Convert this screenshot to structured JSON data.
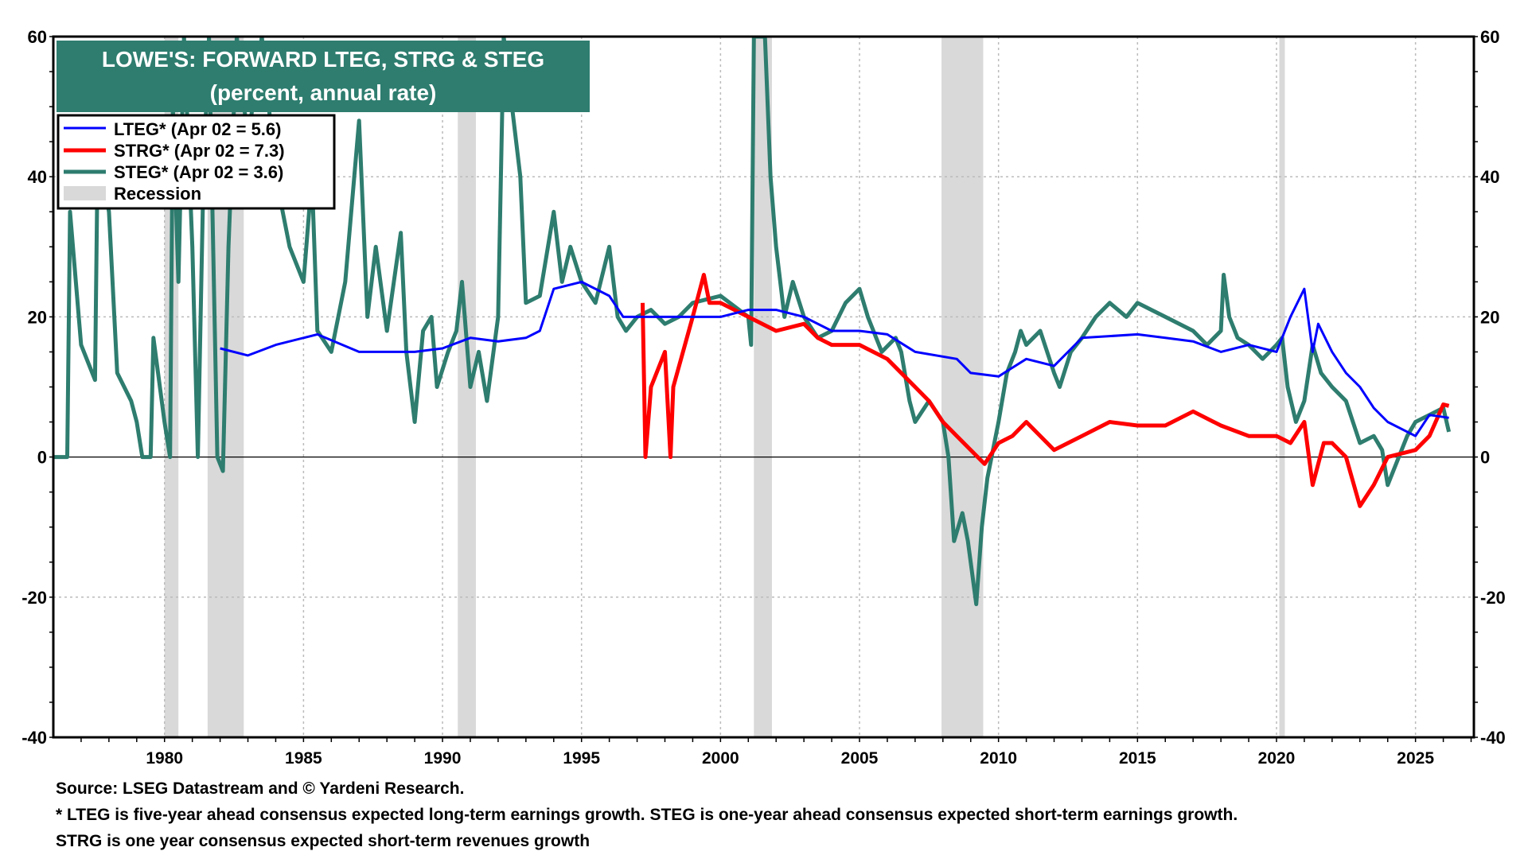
{
  "chart_data": {
    "type": "line",
    "title": "LOWE'S: FORWARD LTEG, STRG & STEG",
    "subtitle": "(percent, annual rate)",
    "xlim": [
      1976.0,
      2027.1
    ],
    "ylim": [
      -40,
      60
    ],
    "grid": true,
    "legend_placement": "top-left",
    "x_ticks": [
      1980,
      1985,
      1990,
      1995,
      2000,
      2005,
      2010,
      2015,
      2020,
      2025
    ],
    "y_ticks": [
      -40,
      -20,
      0,
      20,
      40,
      60
    ],
    "colors": {
      "title_bg": "#2e7d6f",
      "lteg": "#0000ff",
      "strg": "#ff0000",
      "steg": "#2e7d6f",
      "recession": "#d9d9d9"
    },
    "recessions": [
      [
        1980.0,
        1980.5
      ],
      [
        1981.55,
        1982.85
      ],
      [
        1990.55,
        1991.2
      ],
      [
        2001.2,
        2001.85
      ],
      [
        2007.95,
        2009.45
      ],
      [
        2020.1,
        2020.3
      ]
    ],
    "legend": {
      "lteg": "LTEG* (Apr 02 = 5.6)",
      "strg": "STRG* (Apr 02 = 7.3)",
      "steg": "STEG* (Apr 02 = 3.6)",
      "recession": "Recession"
    },
    "series": [
      {
        "name": "LTEG*",
        "key": "lteg",
        "points": [
          [
            1982,
            15.5
          ],
          [
            1983,
            14.5
          ],
          [
            1984,
            16
          ],
          [
            1985.5,
            17.5
          ],
          [
            1987,
            15
          ],
          [
            1989,
            15
          ],
          [
            1990,
            15.5
          ],
          [
            1991,
            17
          ],
          [
            1992,
            16.5
          ],
          [
            1993,
            17
          ],
          [
            1993.5,
            18
          ],
          [
            1994,
            24
          ],
          [
            1995,
            25
          ],
          [
            1996,
            23
          ],
          [
            1996.5,
            20
          ],
          [
            1999,
            20
          ],
          [
            2000,
            20
          ],
          [
            2001,
            21
          ],
          [
            2002,
            21
          ],
          [
            2003,
            20
          ],
          [
            2004,
            18
          ],
          [
            2005,
            18
          ],
          [
            2006,
            17.5
          ],
          [
            2007,
            15
          ],
          [
            2008.5,
            14
          ],
          [
            2009,
            12
          ],
          [
            2010,
            11.5
          ],
          [
            2011,
            14
          ],
          [
            2012,
            13
          ],
          [
            2013,
            17
          ],
          [
            2015,
            17.5
          ],
          [
            2016,
            17
          ],
          [
            2017,
            16.5
          ],
          [
            2018,
            15
          ],
          [
            2019,
            16
          ],
          [
            2020,
            15
          ],
          [
            2020.5,
            20
          ],
          [
            2021,
            24
          ],
          [
            2021.3,
            15
          ],
          [
            2021.5,
            19
          ],
          [
            2022,
            15
          ],
          [
            2022.5,
            12
          ],
          [
            2023,
            10
          ],
          [
            2023.5,
            7
          ],
          [
            2024,
            5
          ],
          [
            2025,
            3
          ],
          [
            2025.5,
            6
          ],
          [
            2026.2,
            5.6
          ]
        ]
      },
      {
        "name": "STRG*",
        "key": "strg",
        "points": [
          [
            1997.2,
            22
          ],
          [
            1997.3,
            0
          ],
          [
            1997.5,
            10
          ],
          [
            1998,
            15
          ],
          [
            1998.2,
            0
          ],
          [
            1998.3,
            10
          ],
          [
            1999,
            20
          ],
          [
            1999.4,
            26
          ],
          [
            1999.6,
            22
          ],
          [
            2000,
            22
          ],
          [
            2001,
            20
          ],
          [
            2002,
            18
          ],
          [
            2003,
            19
          ],
          [
            2003.5,
            17
          ],
          [
            2004,
            16
          ],
          [
            2005,
            16
          ],
          [
            2006,
            14
          ],
          [
            2007,
            10
          ],
          [
            2007.5,
            8
          ],
          [
            2008,
            5
          ],
          [
            2008.5,
            3
          ],
          [
            2009,
            1
          ],
          [
            2009.5,
            -1
          ],
          [
            2010,
            2
          ],
          [
            2010.5,
            3
          ],
          [
            2011,
            5
          ],
          [
            2012,
            1
          ],
          [
            2012.5,
            2
          ],
          [
            2013,
            3
          ],
          [
            2014,
            5
          ],
          [
            2015,
            4.5
          ],
          [
            2016,
            4.5
          ],
          [
            2017,
            6.5
          ],
          [
            2018,
            4.5
          ],
          [
            2019,
            3
          ],
          [
            2020,
            3
          ],
          [
            2020.5,
            2
          ],
          [
            2021,
            5
          ],
          [
            2021.3,
            -4
          ],
          [
            2021.7,
            2
          ],
          [
            2022,
            2
          ],
          [
            2022.5,
            0
          ],
          [
            2023,
            -7
          ],
          [
            2023.5,
            -4
          ],
          [
            2024,
            0
          ],
          [
            2025,
            1
          ],
          [
            2025.5,
            3
          ],
          [
            2026,
            7.5
          ],
          [
            2026.2,
            7.3
          ]
        ]
      },
      {
        "name": "STEG*",
        "key": "steg",
        "points": [
          [
            1976,
            0
          ],
          [
            1976.5,
            0
          ],
          [
            1976.6,
            35
          ],
          [
            1977,
            16
          ],
          [
            1977.5,
            11
          ],
          [
            1977.6,
            45
          ],
          [
            1978,
            35
          ],
          [
            1978.3,
            12
          ],
          [
            1978.8,
            8
          ],
          [
            1979,
            5
          ],
          [
            1979.2,
            0
          ],
          [
            1979.5,
            0
          ],
          [
            1979.6,
            17
          ],
          [
            1980,
            5
          ],
          [
            1980.2,
            0
          ],
          [
            1980.3,
            50
          ],
          [
            1980.5,
            25
          ],
          [
            1980.7,
            60
          ],
          [
            1981,
            30
          ],
          [
            1981.2,
            0
          ],
          [
            1981.4,
            40
          ],
          [
            1981.6,
            60
          ],
          [
            1981.9,
            0
          ],
          [
            1982.1,
            -2
          ],
          [
            1982.3,
            30
          ],
          [
            1982.6,
            60
          ],
          [
            1983,
            45
          ],
          [
            1983.5,
            60
          ],
          [
            1984,
            40
          ],
          [
            1984.5,
            30
          ],
          [
            1985,
            25
          ],
          [
            1985.3,
            40
          ],
          [
            1985.5,
            18
          ],
          [
            1986,
            15
          ],
          [
            1986.5,
            25
          ],
          [
            1987,
            48
          ],
          [
            1987.3,
            20
          ],
          [
            1987.6,
            30
          ],
          [
            1988,
            18
          ],
          [
            1988.5,
            32
          ],
          [
            1988.7,
            15
          ],
          [
            1989,
            5
          ],
          [
            1989.3,
            18
          ],
          [
            1989.6,
            20
          ],
          [
            1989.8,
            10
          ],
          [
            1990.2,
            15
          ],
          [
            1990.5,
            18
          ],
          [
            1990.7,
            25
          ],
          [
            1991,
            10
          ],
          [
            1991.3,
            15
          ],
          [
            1991.6,
            8
          ],
          [
            1992,
            20
          ],
          [
            1992.2,
            60
          ],
          [
            1992.8,
            40
          ],
          [
            1993,
            22
          ],
          [
            1993.5,
            23
          ],
          [
            1994,
            35
          ],
          [
            1994.3,
            25
          ],
          [
            1994.6,
            30
          ],
          [
            1995,
            25
          ],
          [
            1995.5,
            22
          ],
          [
            1996,
            30
          ],
          [
            1996.3,
            20
          ],
          [
            1996.6,
            18
          ],
          [
            1997,
            20
          ],
          [
            1997.5,
            21
          ],
          [
            1998,
            19
          ],
          [
            1998.5,
            20
          ],
          [
            1999,
            22
          ],
          [
            2000,
            23
          ],
          [
            2001,
            20
          ],
          [
            2001.1,
            16
          ],
          [
            2001.2,
            60
          ],
          [
            2001.6,
            60
          ],
          [
            2001.8,
            40
          ],
          [
            2002,
            30
          ],
          [
            2002.3,
            20
          ],
          [
            2002.6,
            25
          ],
          [
            2003,
            20
          ],
          [
            2003.5,
            17
          ],
          [
            2004,
            18
          ],
          [
            2004.5,
            22
          ],
          [
            2005,
            24
          ],
          [
            2005.3,
            20
          ],
          [
            2005.8,
            15
          ],
          [
            2006.3,
            17
          ],
          [
            2006.5,
            15
          ],
          [
            2006.8,
            8
          ],
          [
            2007,
            5
          ],
          [
            2007.5,
            8
          ],
          [
            2008,
            5
          ],
          [
            2008.2,
            0
          ],
          [
            2008.4,
            -12
          ],
          [
            2008.7,
            -8
          ],
          [
            2008.9,
            -12
          ],
          [
            2009.2,
            -21
          ],
          [
            2009.4,
            -10
          ],
          [
            2009.6,
            -3
          ],
          [
            2010,
            5
          ],
          [
            2010.3,
            12
          ],
          [
            2010.6,
            15
          ],
          [
            2010.8,
            18
          ],
          [
            2011,
            16
          ],
          [
            2011.5,
            18
          ],
          [
            2012,
            12
          ],
          [
            2012.2,
            10
          ],
          [
            2012.6,
            15
          ],
          [
            2013,
            17
          ],
          [
            2013.5,
            20
          ],
          [
            2014,
            22
          ],
          [
            2014.6,
            20
          ],
          [
            2015,
            22
          ],
          [
            2015.5,
            21
          ],
          [
            2016,
            20
          ],
          [
            2017,
            18
          ],
          [
            2017.5,
            16
          ],
          [
            2018,
            18
          ],
          [
            2018.1,
            26
          ],
          [
            2018.3,
            20
          ],
          [
            2018.6,
            17
          ],
          [
            2019,
            16
          ],
          [
            2019.5,
            14
          ],
          [
            2020,
            16
          ],
          [
            2020.2,
            17
          ],
          [
            2020.4,
            10
          ],
          [
            2020.7,
            5
          ],
          [
            2021,
            8
          ],
          [
            2021.3,
            16
          ],
          [
            2021.6,
            12
          ],
          [
            2022,
            10
          ],
          [
            2022.5,
            8
          ],
          [
            2023,
            2
          ],
          [
            2023.5,
            3
          ],
          [
            2023.8,
            1
          ],
          [
            2024,
            -4
          ],
          [
            2024.4,
            0
          ],
          [
            2024.7,
            3
          ],
          [
            2025,
            5
          ],
          [
            2025.5,
            6
          ],
          [
            2026,
            7
          ],
          [
            2026.2,
            3.6
          ]
        ]
      }
    ]
  },
  "footer": {
    "source": "Source: LSEG Datastream and © Yardeni Research.",
    "note1": "* LTEG is five-year ahead consensus expected long-term earnings growth. STEG is one-year ahead consensus expected short-term earnings growth.",
    "note2": "STRG is one year consensus expected short-term revenues growth"
  }
}
